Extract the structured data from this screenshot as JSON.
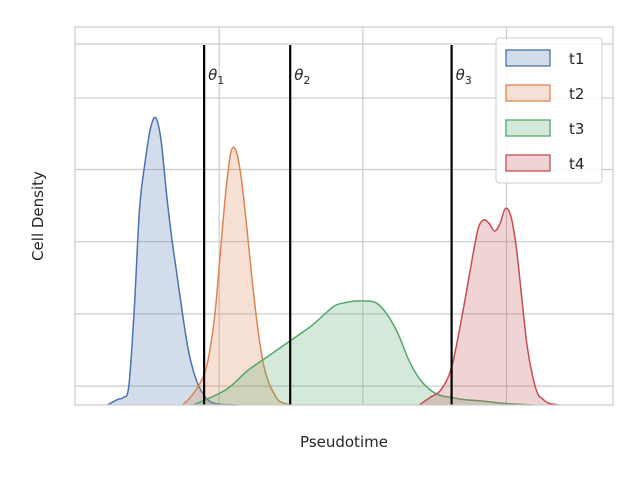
{
  "chart_data": {
    "type": "area",
    "xlabel": "Pseudotime",
    "ylabel": "Cell Density",
    "x_tick_labels_shown": false,
    "y_tick_labels_shown": false,
    "grid": true,
    "legend_position": "top-right",
    "xlim": [
      0,
      1
    ],
    "ylim": [
      0,
      1
    ],
    "series": [
      {
        "name": "t1",
        "color": "#4c72b0",
        "x": [
          0.06,
          0.08,
          0.09,
          0.1,
          0.11,
          0.12,
          0.13,
          0.14,
          0.15,
          0.16,
          0.17,
          0.18,
          0.19,
          0.2,
          0.21,
          0.22,
          0.23,
          0.24,
          0.25,
          0.26,
          0.27,
          0.28,
          0.3
        ],
        "y": [
          0.0,
          0.015,
          0.02,
          0.05,
          0.25,
          0.52,
          0.64,
          0.73,
          0.76,
          0.7,
          0.56,
          0.44,
          0.34,
          0.24,
          0.15,
          0.09,
          0.05,
          0.025,
          0.01,
          0.004,
          0.002,
          0.001,
          0.0
        ]
      },
      {
        "name": "t2",
        "color": "#dd8452",
        "x": [
          0.2,
          0.22,
          0.24,
          0.25,
          0.26,
          0.27,
          0.28,
          0.29,
          0.3,
          0.31,
          0.32,
          0.33,
          0.34,
          0.35,
          0.36,
          0.37,
          0.38,
          0.4
        ],
        "y": [
          0.0,
          0.03,
          0.08,
          0.14,
          0.24,
          0.4,
          0.56,
          0.67,
          0.67,
          0.59,
          0.46,
          0.32,
          0.2,
          0.11,
          0.06,
          0.03,
          0.01,
          0.0
        ]
      },
      {
        "name": "t3",
        "color": "#55a868",
        "x": [
          0.22,
          0.28,
          0.32,
          0.36,
          0.4,
          0.44,
          0.48,
          0.5,
          0.52,
          0.54,
          0.56,
          0.58,
          0.6,
          0.62,
          0.64,
          0.66,
          0.68,
          0.7,
          0.72,
          0.76,
          0.8,
          0.85
        ],
        "y": [
          0.0,
          0.04,
          0.09,
          0.13,
          0.17,
          0.21,
          0.26,
          0.27,
          0.275,
          0.275,
          0.27,
          0.24,
          0.19,
          0.12,
          0.07,
          0.04,
          0.025,
          0.02,
          0.015,
          0.01,
          0.004,
          0.0
        ]
      },
      {
        "name": "t4",
        "color": "#c44e52",
        "x": [
          0.64,
          0.66,
          0.68,
          0.7,
          0.72,
          0.74,
          0.75,
          0.76,
          0.77,
          0.78,
          0.79,
          0.8,
          0.81,
          0.82,
          0.83,
          0.84,
          0.85,
          0.86,
          0.87,
          0.88,
          0.9
        ],
        "y": [
          0.0,
          0.02,
          0.04,
          0.1,
          0.24,
          0.4,
          0.47,
          0.49,
          0.48,
          0.46,
          0.48,
          0.52,
          0.5,
          0.42,
          0.29,
          0.16,
          0.08,
          0.03,
          0.015,
          0.005,
          0.0
        ]
      }
    ],
    "vlines": [
      {
        "label_var": "θ",
        "label_sub": "1",
        "x": 0.24
      },
      {
        "label_var": "θ",
        "label_sub": "2",
        "x": 0.4
      },
      {
        "label_var": "θ",
        "label_sub": "3",
        "x": 0.7
      }
    ]
  }
}
